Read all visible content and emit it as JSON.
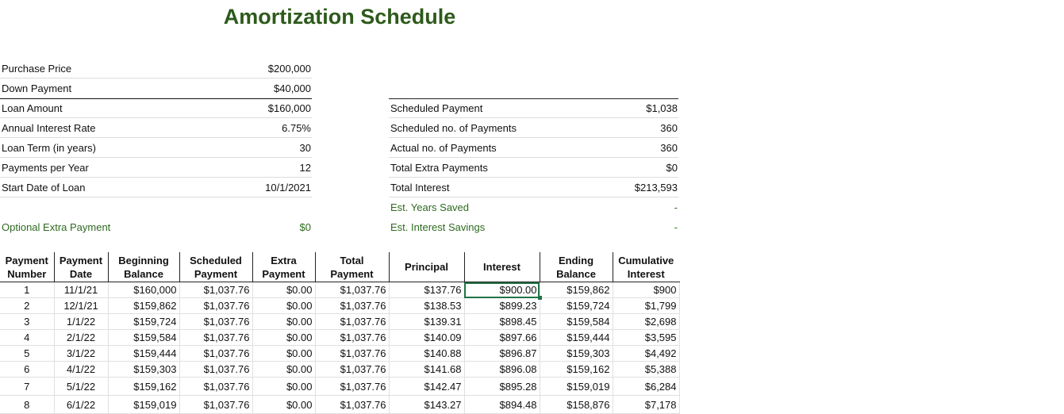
{
  "title": "Amortization Schedule",
  "inputs": [
    {
      "label": "Purchase Price",
      "value": "$200,000"
    },
    {
      "label": "Down Payment",
      "value": "$40,000"
    },
    {
      "label": "Loan Amount",
      "value": "$160,000"
    },
    {
      "label": "Annual Interest Rate",
      "value": "6.75%"
    },
    {
      "label": "Loan Term (in years)",
      "value": "30"
    },
    {
      "label": "Payments per Year",
      "value": "12"
    },
    {
      "label": "Start Date of Loan",
      "value": "10/1/2021"
    }
  ],
  "extra": {
    "label": "Optional Extra Payment",
    "value": "$0"
  },
  "summary": [
    {
      "label": "Scheduled Payment",
      "value": "$1,038"
    },
    {
      "label": "Scheduled no. of Payments",
      "value": "360"
    },
    {
      "label": "Actual no. of Payments",
      "value": "360"
    },
    {
      "label": "Total Extra Payments",
      "value": "$0"
    },
    {
      "label": "Total Interest",
      "value": "$213,593"
    },
    {
      "label": "Est. Years Saved",
      "value": "-"
    },
    {
      "label": "Est. Interest Savings",
      "value": "-"
    }
  ],
  "accent_color": "#2d5a1b",
  "table": {
    "headers": [
      [
        "Payment",
        "Number"
      ],
      [
        "Payment",
        "Date"
      ],
      [
        "Beginning",
        "Balance"
      ],
      [
        "Scheduled",
        "Payment"
      ],
      [
        "Extra",
        "Payment"
      ],
      [
        "Total",
        "Payment"
      ],
      [
        "Principal",
        ""
      ],
      [
        "Interest",
        ""
      ],
      [
        "Ending",
        "Balance"
      ],
      [
        "Cumulative",
        "Interest"
      ]
    ],
    "rows": [
      [
        "1",
        "11/1/21",
        "$160,000",
        "$1,037.76",
        "$0.00",
        "$1,037.76",
        "$137.76",
        "$900.00",
        "$159,862",
        "$900"
      ],
      [
        "2",
        "12/1/21",
        "$159,862",
        "$1,037.76",
        "$0.00",
        "$1,037.76",
        "$138.53",
        "$899.23",
        "$159,724",
        "$1,799"
      ],
      [
        "3",
        "1/1/22",
        "$159,724",
        "$1,037.76",
        "$0.00",
        "$1,037.76",
        "$139.31",
        "$898.45",
        "$159,584",
        "$2,698"
      ],
      [
        "4",
        "2/1/22",
        "$159,584",
        "$1,037.76",
        "$0.00",
        "$1,037.76",
        "$140.09",
        "$897.66",
        "$159,444",
        "$3,595"
      ],
      [
        "5",
        "3/1/22",
        "$159,444",
        "$1,037.76",
        "$0.00",
        "$1,037.76",
        "$140.88",
        "$896.87",
        "$159,303",
        "$4,492"
      ],
      [
        "6",
        "4/1/22",
        "$159,303",
        "$1,037.76",
        "$0.00",
        "$1,037.76",
        "$141.68",
        "$896.08",
        "$159,162",
        "$5,388"
      ],
      [
        "7",
        "5/1/22",
        "$159,162",
        "$1,037.76",
        "$0.00",
        "$1,037.76",
        "$142.47",
        "$895.28",
        "$159,019",
        "$6,284"
      ],
      [
        "8",
        "6/1/22",
        "$159,019",
        "$1,037.76",
        "$0.00",
        "$1,037.76",
        "$143.27",
        "$894.48",
        "$158,876",
        "$7,178"
      ]
    ]
  }
}
